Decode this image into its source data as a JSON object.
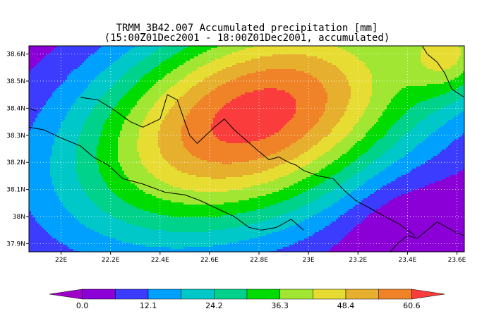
{
  "title": {
    "line1": "TRMM_3B42.007 Accumulated precipitation [mm]",
    "line2": "(15:00Z01Dec2001 - 18:00Z01Dec2001, accumulated)"
  },
  "map": {
    "lon_range": [
      21.87,
      23.63
    ],
    "lat_range": [
      37.87,
      38.63
    ],
    "gridlines": true,
    "x_ticks": [
      {
        "value": 22.0,
        "label": "22E"
      },
      {
        "value": 22.2,
        "label": "22.2E"
      },
      {
        "value": 22.4,
        "label": "22.4E"
      },
      {
        "value": 22.6,
        "label": "22.6E"
      },
      {
        "value": 22.8,
        "label": "22.8E"
      },
      {
        "value": 23.0,
        "label": "23E"
      },
      {
        "value": 23.2,
        "label": "23.2E"
      },
      {
        "value": 23.4,
        "label": "23.4E"
      },
      {
        "value": 23.6,
        "label": "23.6E"
      }
    ],
    "y_ticks": [
      {
        "value": 38.6,
        "label": "38.6N"
      },
      {
        "value": 38.5,
        "label": "38.5N"
      },
      {
        "value": 38.4,
        "label": "38.4N"
      },
      {
        "value": 38.3,
        "label": "38.3N"
      },
      {
        "value": 38.2,
        "label": "38.2N"
      },
      {
        "value": 38.1,
        "label": "38.1N"
      },
      {
        "value": 38.0,
        "label": "38N"
      },
      {
        "value": 37.9,
        "label": "37.9N"
      }
    ],
    "precip_field": {
      "units": "mm",
      "peak": {
        "lon": 22.78,
        "lat": 38.37,
        "value": 64
      },
      "levels": [
        0,
        6.05,
        12.1,
        18.15,
        24.2,
        30.25,
        36.3,
        42.35,
        48.4,
        54.45,
        60.6
      ],
      "colors": [
        "#a000c8",
        "#8c00d8",
        "#3c3cff",
        "#00a0ff",
        "#00c8c8",
        "#00d28c",
        "#00dc00",
        "#a0e632",
        "#e6dc32",
        "#e6af2d",
        "#f08228",
        "#fa3c3c"
      ]
    }
  },
  "colorbar": {
    "labels": [
      {
        "level_index": 0,
        "text": "0.0"
      },
      {
        "level_index": 2,
        "text": "12.1"
      },
      {
        "level_index": 4,
        "text": "24.2"
      },
      {
        "level_index": 6,
        "text": "36.3"
      },
      {
        "level_index": 8,
        "text": "48.4"
      },
      {
        "level_index": 10,
        "text": "60.6"
      }
    ]
  }
}
